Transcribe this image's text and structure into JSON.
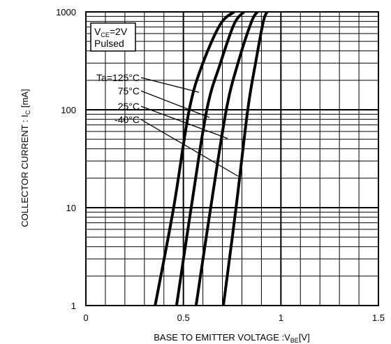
{
  "chart_data": {
    "type": "line",
    "title": "",
    "xlabel": {
      "main": "BASE TO EMITTER VOLTAGE :V",
      "sub": "BE",
      "unit": "[V]"
    },
    "ylabel": {
      "main": "COLLECTOR CURRENT : I",
      "sub": "C",
      "unit": " [mA]"
    },
    "xlim": [
      0,
      1.5
    ],
    "ylim": [
      1,
      1000
    ],
    "yscale": "log",
    "grid": true,
    "x_ticks": [
      "0",
      "0.5",
      "1",
      "1.5"
    ],
    "y_ticks": [
      "1",
      "10",
      "100",
      "1000"
    ],
    "condition_box": {
      "line1_main": "V",
      "line1_sub": "CE",
      "line1_rest": "=2V",
      "line2": "Pulsed"
    },
    "series": [
      {
        "name": "Ta=125°C",
        "points": [
          [
            0.355,
            1
          ],
          [
            0.45,
            10
          ],
          [
            0.53,
            100
          ],
          [
            0.6,
            300
          ],
          [
            0.69,
            750
          ],
          [
            0.76,
            1000
          ]
        ]
      },
      {
        "name": "75°C",
        "points": [
          [
            0.465,
            1
          ],
          [
            0.54,
            10
          ],
          [
            0.62,
            100
          ],
          [
            0.69,
            300
          ],
          [
            0.76,
            750
          ],
          [
            0.81,
            1000
          ]
        ]
      },
      {
        "name": "25°C",
        "points": [
          [
            0.565,
            1
          ],
          [
            0.64,
            10
          ],
          [
            0.72,
            100
          ],
          [
            0.78,
            300
          ],
          [
            0.85,
            800
          ],
          [
            0.88,
            1000
          ]
        ]
      },
      {
        "name": "-40°C",
        "points": [
          [
            0.705,
            1
          ],
          [
            0.77,
            10
          ],
          [
            0.83,
            100
          ],
          [
            0.87,
            300
          ],
          [
            0.91,
            800
          ],
          [
            0.93,
            1000
          ]
        ]
      }
    ]
  }
}
